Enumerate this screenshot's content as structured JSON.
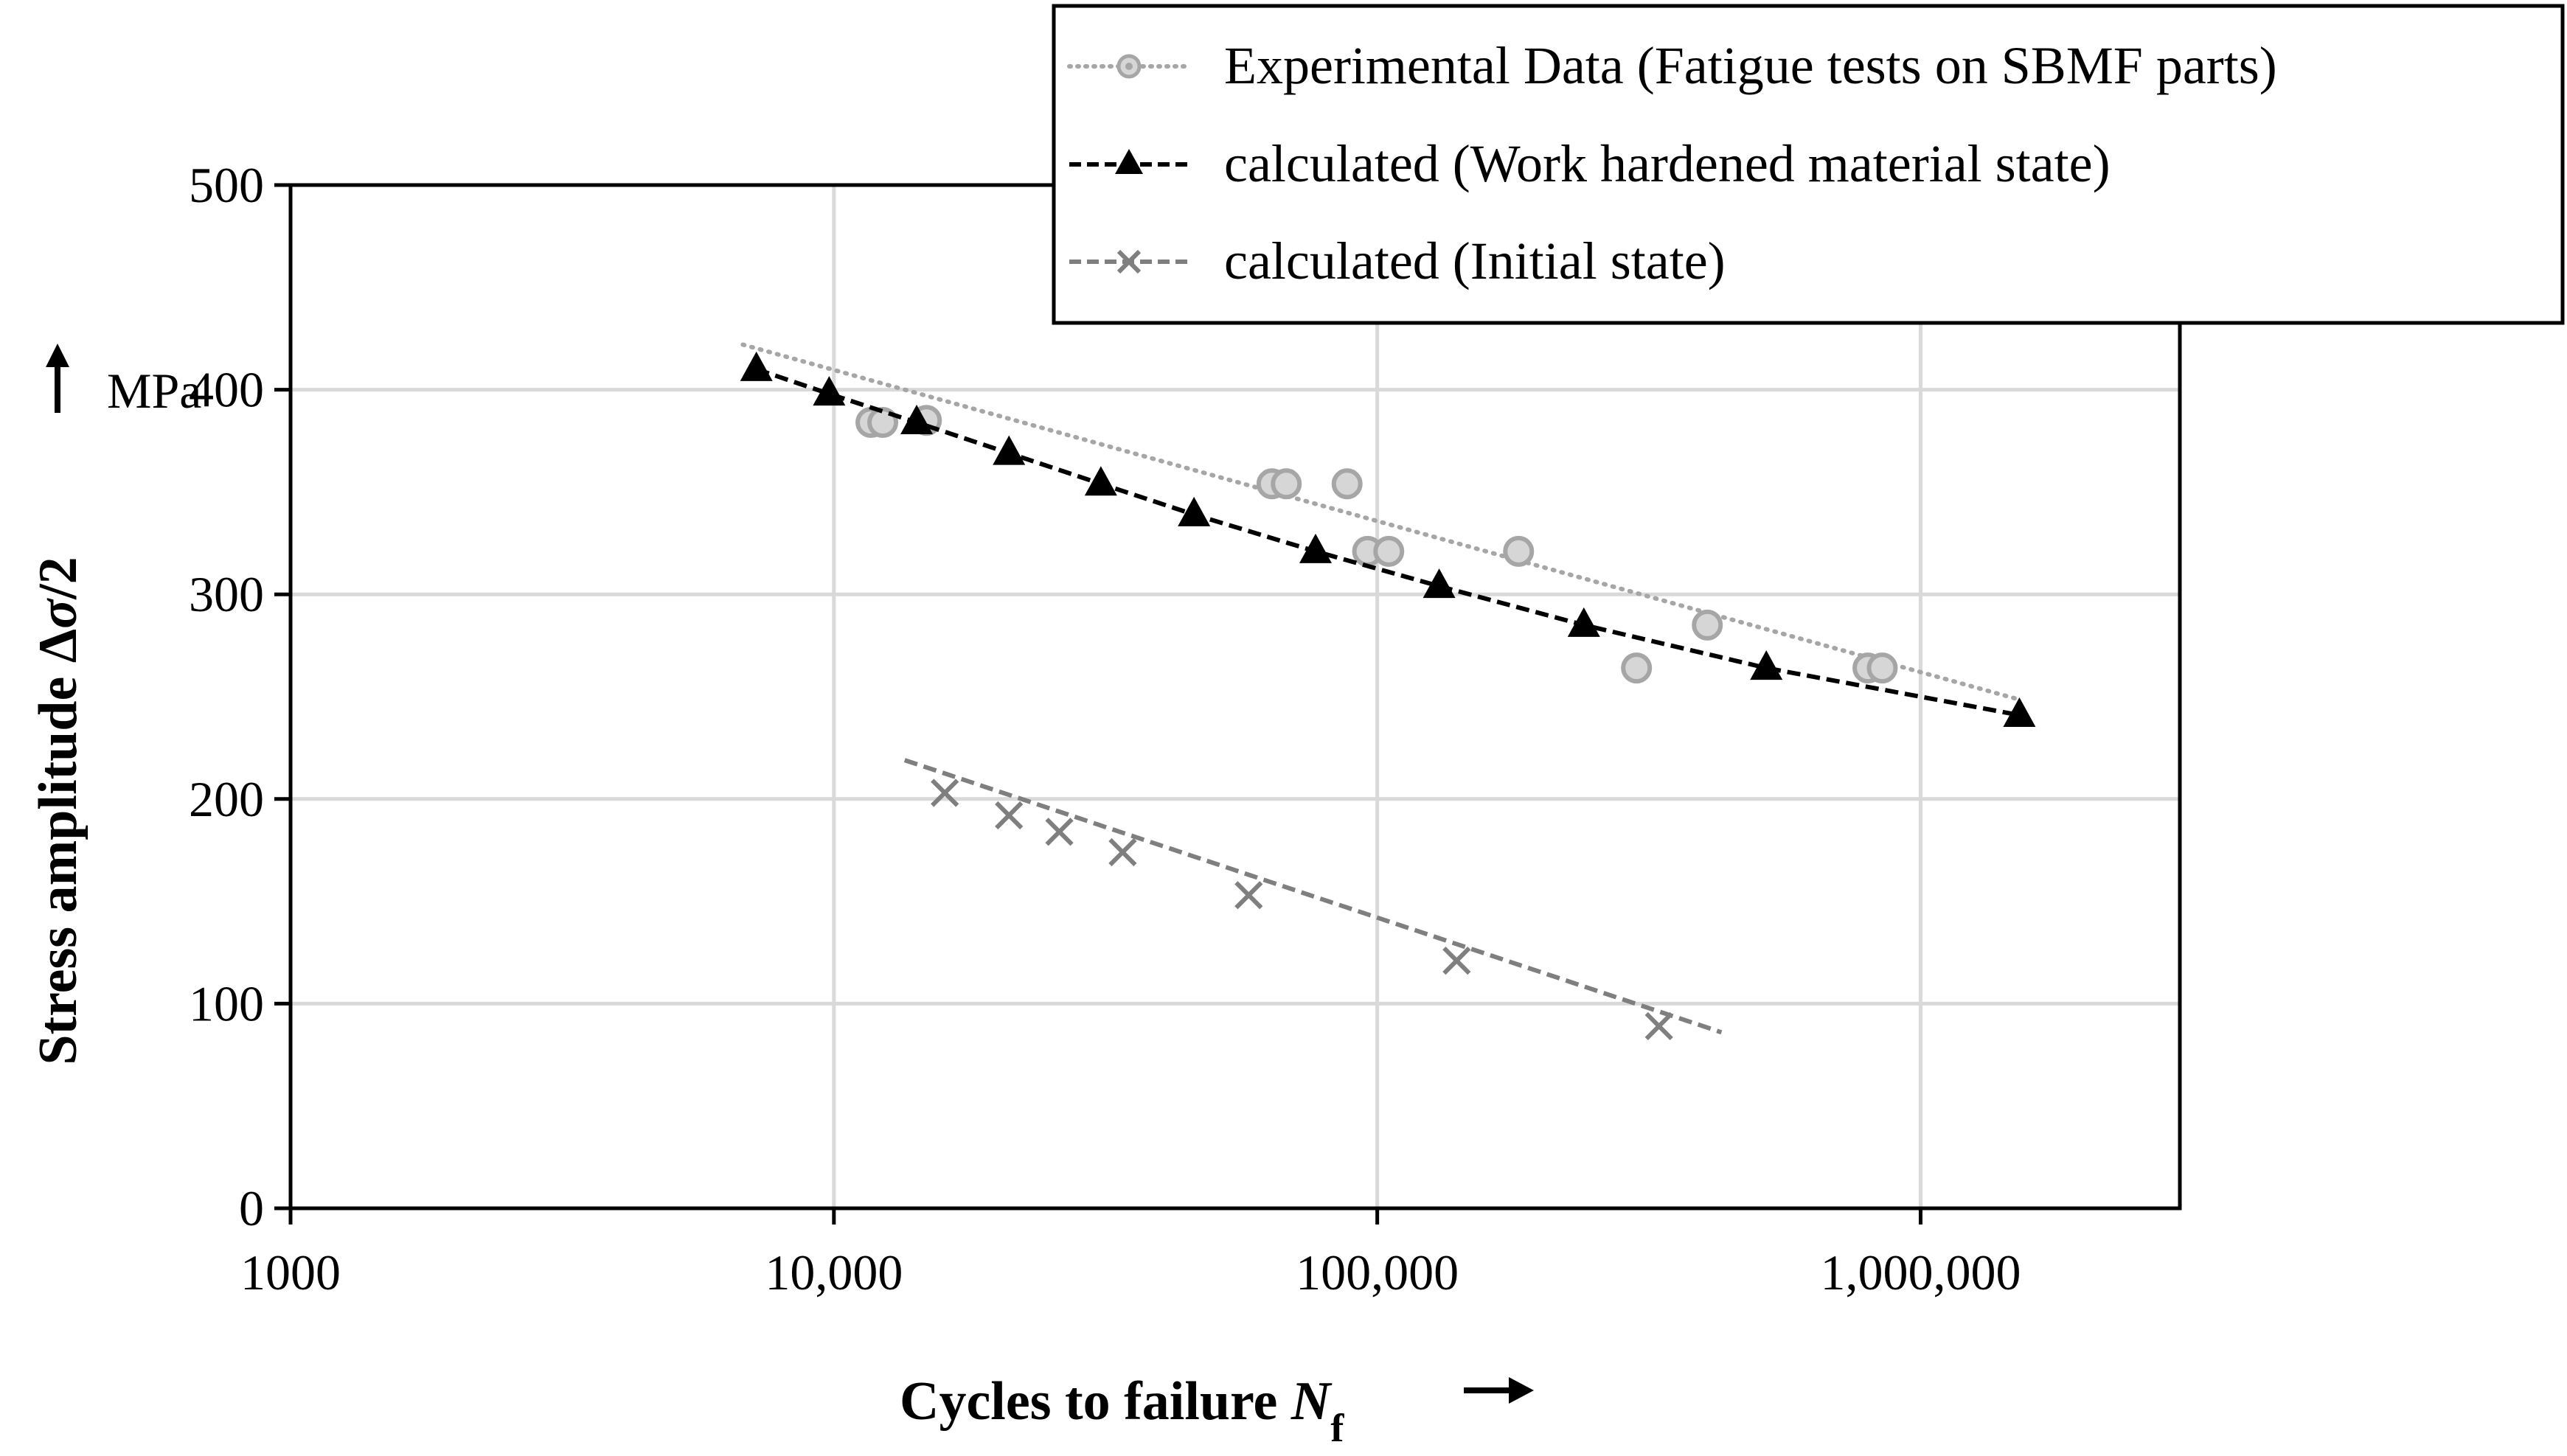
{
  "chart_data": {
    "type": "scatter",
    "xscale": "log",
    "xlim": [
      1000,
      3000000
    ],
    "ylim": [
      0,
      500
    ],
    "grid": true,
    "xlabel": "Cycles to failure N_f",
    "xlabel_main": "Cycles to failure ",
    "xlabel_var": "N",
    "xlabel_sub": "f",
    "ylabel": "Stress amplitude Δσ/2",
    "ylabel_main": "Stress amplitude Δ",
    "ylabel_var": "σ",
    "ylabel_tail": "/2",
    "yunit": "MPa",
    "xticks": [
      {
        "value": 1000,
        "label": "1000"
      },
      {
        "value": 10000,
        "label": "10,000"
      },
      {
        "value": 100000,
        "label": "100,000"
      },
      {
        "value": 1000000,
        "label": "1,000,000"
      }
    ],
    "yticks": [
      {
        "value": 0,
        "label": "0"
      },
      {
        "value": 100,
        "label": "100"
      },
      {
        "value": 200,
        "label": "200"
      },
      {
        "value": 300,
        "label": "300"
      },
      {
        "value": 400,
        "label": "400"
      },
      {
        "value": 500,
        "label": "500"
      }
    ],
    "legend_position": "top-right",
    "series": [
      {
        "name": "Experimental Data (Fatigue tests on SBMF parts)",
        "marker": "circle",
        "color": "#a6a6a6",
        "line_style": "dotted",
        "trend": {
          "x": [
            6800,
            1500000
          ],
          "y": [
            422,
            249
          ]
        },
        "points": [
          {
            "x": 11700,
            "y": 384
          },
          {
            "x": 12300,
            "y": 384
          },
          {
            "x": 14800,
            "y": 385
          },
          {
            "x": 64000,
            "y": 354
          },
          {
            "x": 68000,
            "y": 354
          },
          {
            "x": 88000,
            "y": 354
          },
          {
            "x": 96000,
            "y": 321
          },
          {
            "x": 105000,
            "y": 321
          },
          {
            "x": 182000,
            "y": 321
          },
          {
            "x": 300000,
            "y": 264
          },
          {
            "x": 405000,
            "y": 285
          },
          {
            "x": 800000,
            "y": 264
          },
          {
            "x": 850000,
            "y": 264
          }
        ]
      },
      {
        "name": "calculated (Work hardened material state)",
        "marker": "triangle",
        "color": "#000000",
        "line_style": "dashed",
        "points": [
          {
            "x": 7200,
            "y": 410
          },
          {
            "x": 9800,
            "y": 398
          },
          {
            "x": 14200,
            "y": 384
          },
          {
            "x": 21000,
            "y": 369
          },
          {
            "x": 31000,
            "y": 354
          },
          {
            "x": 46000,
            "y": 339
          },
          {
            "x": 77000,
            "y": 321
          },
          {
            "x": 130000,
            "y": 304
          },
          {
            "x": 240000,
            "y": 285
          },
          {
            "x": 520000,
            "y": 264
          },
          {
            "x": 1520000,
            "y": 241
          }
        ]
      },
      {
        "name": "calculated (Initial state)",
        "marker": "x",
        "color": "#7f7f7f",
        "line_style": "dashed",
        "trend": {
          "x": [
            13500,
            430000
          ],
          "y": [
            219,
            86
          ]
        },
        "points": [
          {
            "x": 16000,
            "y": 203
          },
          {
            "x": 21000,
            "y": 192
          },
          {
            "x": 26000,
            "y": 184
          },
          {
            "x": 34000,
            "y": 174
          },
          {
            "x": 58000,
            "y": 153
          },
          {
            "x": 140000,
            "y": 121
          },
          {
            "x": 330000,
            "y": 89
          }
        ]
      }
    ]
  }
}
